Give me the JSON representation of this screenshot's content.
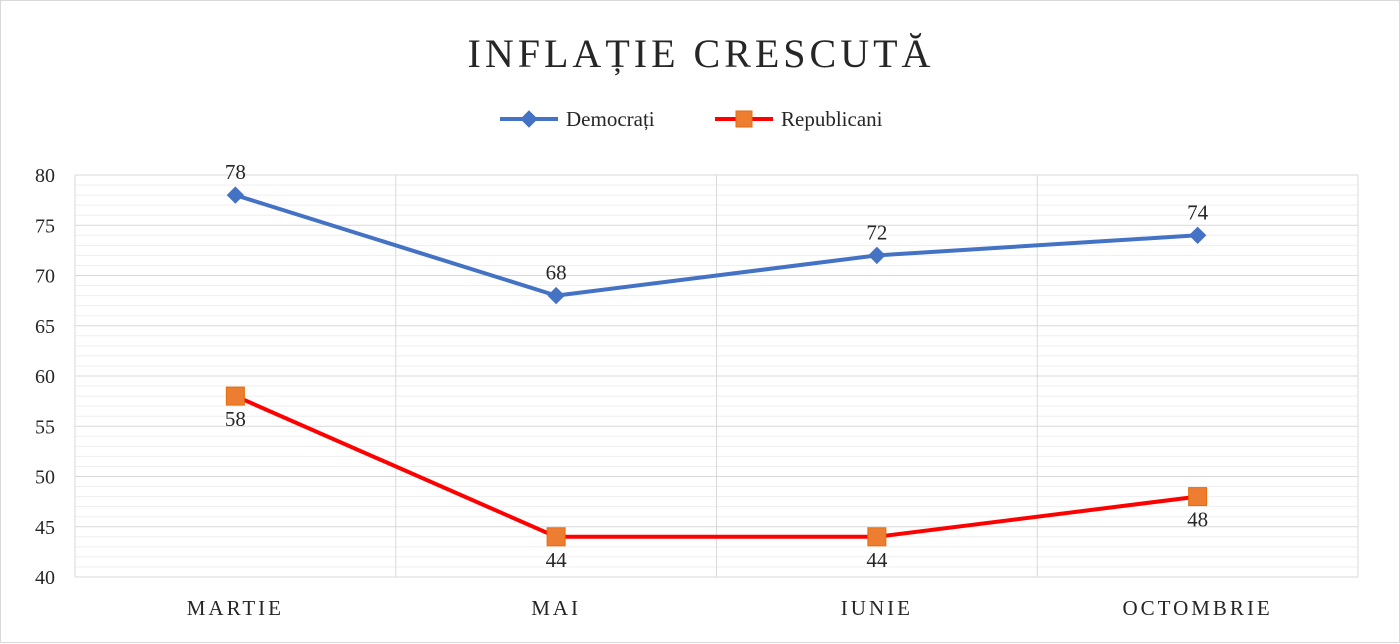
{
  "chart_data": {
    "type": "line",
    "title": "INFLAȚIE CRESCUTĂ",
    "categories": [
      "MARTIE",
      "MAI",
      "IUNIE",
      "OCTOMBRIE"
    ],
    "series": [
      {
        "name": "Democrați",
        "values": [
          78,
          68,
          72,
          74
        ],
        "color": "#4472C4",
        "marker": "diamond",
        "label_position": "above"
      },
      {
        "name": "Republicani",
        "values": [
          58,
          44,
          44,
          48
        ],
        "color": "#FF0000",
        "marker_color": "#ED7D31",
        "marker": "square",
        "label_position": "below"
      }
    ],
    "yticks": [
      40,
      45,
      50,
      55,
      60,
      65,
      70,
      75,
      80
    ],
    "ylim": [
      40,
      80
    ],
    "minor_grid_step": 1,
    "grid": true,
    "legend": "top-center",
    "xlabel": "",
    "ylabel": ""
  }
}
